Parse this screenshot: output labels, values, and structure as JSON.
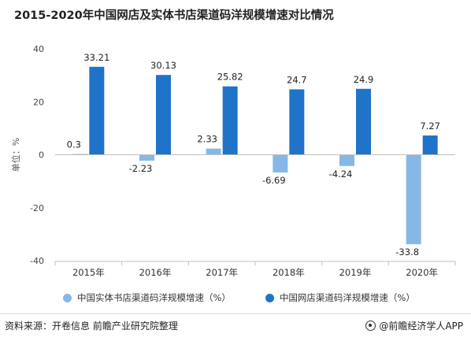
{
  "title": "2015-2020年中国网店及实体书店渠道码洋规模增速对比情况",
  "chart_data": {
    "type": "bar",
    "categories": [
      "2015年",
      "2016年",
      "2017年",
      "2018年",
      "2019年",
      "2020年"
    ],
    "series": [
      {
        "name": "中国实体书店渠道码洋规模增速（%）",
        "values": [
          0.3,
          -2.23,
          2.33,
          -6.69,
          -4.24,
          -33.8
        ],
        "labels": [
          "0.3",
          "-2.23",
          "2.33",
          "-6.69",
          "-4.24",
          "-33.8"
        ],
        "color": "#85b8e6"
      },
      {
        "name": "中国网店渠道码洋规模增速（%）",
        "values": [
          33.21,
          30.13,
          25.82,
          24.7,
          24.9,
          7.27
        ],
        "labels": [
          "33.21",
          "30.13",
          "25.82",
          "24.7",
          "24.9",
          "7.27"
        ],
        "color": "#1f73c9"
      }
    ],
    "ylabel": "单位：%",
    "ylim": [
      -40,
      40
    ],
    "yticks": [
      40,
      20,
      0,
      -20,
      -40
    ],
    "grid": false,
    "legend": "bottom"
  },
  "footer": {
    "source": "资料来源：开卷信息 前瞻产业研究院整理",
    "brand": "@前瞻经济学人APP"
  }
}
